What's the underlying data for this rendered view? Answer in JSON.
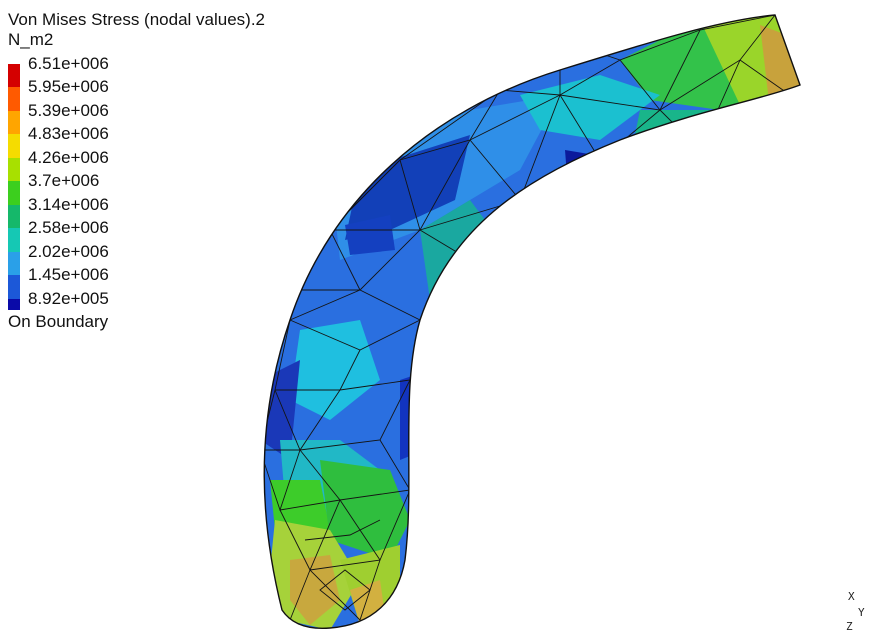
{
  "legend": {
    "title": "Von Mises Stress (nodal values).2",
    "unit": "N_m2",
    "values": [
      "6.51e+006",
      "5.95e+006",
      "5.39e+006",
      "4.83e+006",
      "4.26e+006",
      "3.7e+006",
      "3.14e+006",
      "2.58e+006",
      "2.02e+006",
      "1.45e+006",
      "8.92e+005"
    ],
    "colors": [
      "#d40000",
      "#ff5a00",
      "#ffa500",
      "#f5dc00",
      "#a8e000",
      "#3ccf1e",
      "#15b86a",
      "#15c8b4",
      "#2aa0e8",
      "#1c58d8",
      "#0a0aa8"
    ],
    "footer": "On Boundary"
  },
  "triad": {
    "x": "X",
    "y": "Y",
    "z": "Z"
  }
}
